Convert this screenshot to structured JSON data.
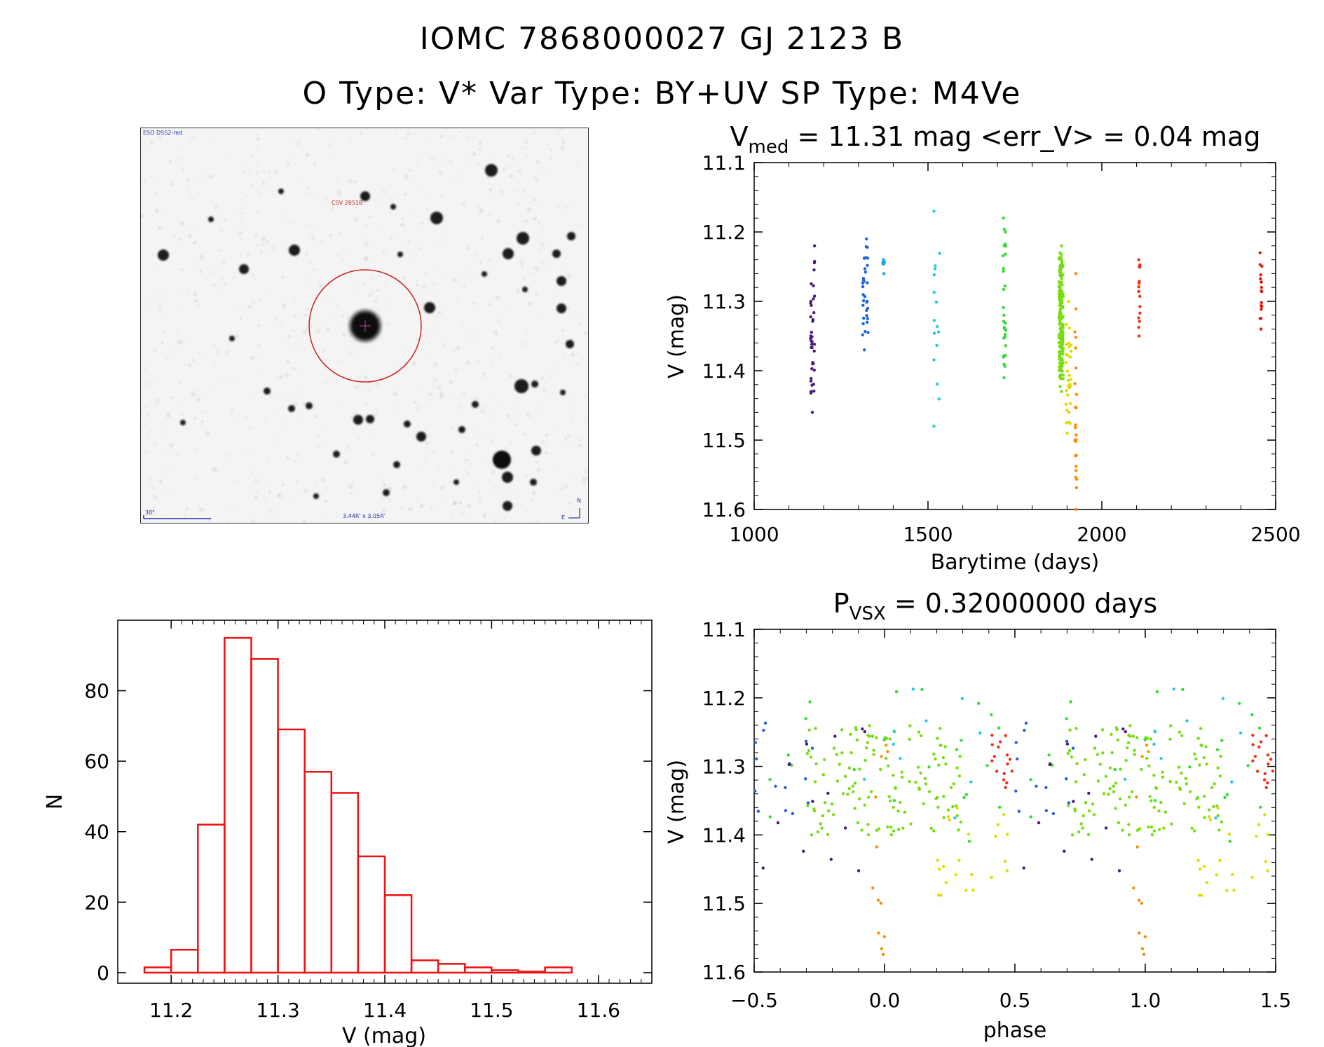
{
  "header": {
    "title_line1": "IOMC 7868000027    GJ  2123 B",
    "title_line2": "O Type: V*   Var Type: BY+UV   SP Type: M4Ve"
  },
  "image_panel": {
    "survey_label": "ESO DSS2-red",
    "object_label": "CSV 2851B",
    "scale_label": "30\"",
    "fov_label": "3.44R' x 3.05R'",
    "north_label": "N",
    "east_label": "E",
    "colors": {
      "circle": "#cc2222",
      "labels": "#2233aa",
      "object_label": "#cc2222"
    }
  },
  "chart_data": [
    {
      "id": "lightcurve",
      "type": "scatter",
      "title_prefix": "V",
      "title_sub": "med",
      "title_rest": " = 11.31 mag <err_V> = 0.04 mag",
      "xlabel": "Barytime (days)",
      "ylabel": "V (mag)",
      "xlim": [
        1000,
        2500
      ],
      "ylim": [
        11.6,
        11.1
      ],
      "xticks": [
        1000,
        1500,
        2000,
        2500
      ],
      "xtick_labels": [
        "1000",
        "1500",
        "2000",
        "2500"
      ],
      "yticks": [
        11.1,
        11.2,
        11.3,
        11.4,
        11.5,
        11.6
      ],
      "ytick_labels": [
        "11.1",
        "11.2",
        "11.3",
        "11.4",
        "11.5",
        "11.6"
      ],
      "groups": [
        {
          "center": 1168,
          "spread": 6,
          "ymin": 11.22,
          "ymax": 11.46,
          "n": 40,
          "color": "#4b1a7a"
        },
        {
          "center": 1320,
          "spread": 8,
          "ymin": 11.21,
          "ymax": 11.37,
          "n": 32,
          "color": "#1e63e0"
        },
        {
          "center": 1372,
          "spread": 3,
          "ymin": 11.24,
          "ymax": 11.26,
          "n": 6,
          "color": "#1ea0ee"
        },
        {
          "center": 1525,
          "spread": 9,
          "ymin": 11.17,
          "ymax": 11.48,
          "n": 16,
          "color": "#22ccdd"
        },
        {
          "center": 1720,
          "spread": 4,
          "ymin": 11.18,
          "ymax": 11.41,
          "n": 30,
          "color": "#33dd33"
        },
        {
          "center": 1883,
          "spread": 6,
          "ymin": 11.22,
          "ymax": 11.43,
          "n": 170,
          "color": "#77dd11"
        },
        {
          "center": 1905,
          "spread": 8,
          "ymin": 11.3,
          "ymax": 11.49,
          "n": 30,
          "color": "#dddd00"
        },
        {
          "center": 1925,
          "spread": 3,
          "ymin": 11.26,
          "ymax": 11.6,
          "n": 24,
          "color": "#ff8c00"
        },
        {
          "center": 2108,
          "spread": 2,
          "ymin": 11.24,
          "ymax": 11.35,
          "n": 16,
          "color": "#ee3311"
        },
        {
          "center": 2458,
          "spread": 3,
          "ymin": 11.23,
          "ymax": 11.34,
          "n": 18,
          "color": "#e01a10"
        }
      ]
    },
    {
      "id": "histogram",
      "type": "bar",
      "xlabel": "V (mag)",
      "ylabel": "N",
      "xlim": [
        11.15,
        11.65
      ],
      "ylim": [
        -3,
        100
      ],
      "bin_edges": [
        11.175,
        11.2,
        11.225,
        11.25,
        11.275,
        11.3,
        11.325,
        11.35,
        11.375,
        11.4,
        11.425,
        11.45,
        11.475,
        11.5,
        11.525,
        11.55,
        11.575,
        11.6
      ],
      "values": [
        1.5,
        6.5,
        42,
        95,
        89,
        69,
        57,
        51,
        33,
        22,
        3.5,
        2.5,
        1.5,
        0.7,
        0.3,
        1.5,
        0
      ],
      "xticks": [
        11.2,
        11.3,
        11.4,
        11.5,
        11.6
      ],
      "xtick_labels": [
        "11.2",
        "11.3",
        "11.4",
        "11.5",
        "11.6"
      ],
      "yticks": [
        0,
        20,
        40,
        60,
        80
      ],
      "ytick_labels": [
        "0",
        "20",
        "40",
        "60",
        "80"
      ],
      "bar_color": "#ee1111"
    },
    {
      "id": "phased",
      "type": "scatter",
      "title_prefix": "P",
      "title_sub": "VSX",
      "title_rest": " = 0.32000000 days",
      "xlabel": "phase",
      "ylabel": "V (mag)",
      "xlim": [
        -0.5,
        1.5
      ],
      "ylim": [
        11.6,
        11.1
      ],
      "xticks": [
        -0.5,
        0.0,
        0.5,
        1.0,
        1.5
      ],
      "xtick_labels": [
        "−0.5",
        "0.0",
        "0.5",
        "1.0",
        "1.5"
      ],
      "yticks": [
        11.1,
        11.2,
        11.3,
        11.4,
        11.5,
        11.6
      ],
      "ytick_labels": [
        "11.1",
        "11.2",
        "11.3",
        "11.4",
        "11.5",
        "11.6"
      ],
      "period_fold": 1.0
    }
  ]
}
